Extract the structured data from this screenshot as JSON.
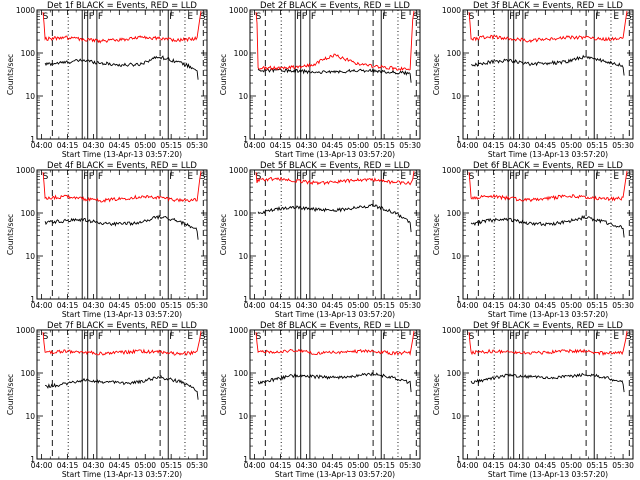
{
  "chart_data": [
    {
      "type": "line",
      "title": "Det 1f BLACK = Events, RED = LLD",
      "xlabel": "Start Time (13-Apr-13 03:57:20)",
      "ylabel": "Counts/sec",
      "series": [
        {
          "name": "Events",
          "color": "#000000",
          "values": [
            55,
            60,
            68,
            58,
            52,
            55,
            82,
            62,
            40
          ]
        },
        {
          "name": "LLD",
          "color": "#ff0000",
          "values": [
            210,
            230,
            205,
            190,
            205,
            230,
            220,
            200,
            220
          ]
        }
      ]
    },
    {
      "type": "line",
      "title": "Det 2f BLACK = Events, RED = LLD",
      "xlabel": "Start Time (13-Apr-13 03:57:20)",
      "ylabel": "Counts/sec",
      "series": [
        {
          "name": "Events",
          "color": "#000000",
          "values": [
            40,
            40,
            38,
            36,
            36,
            38,
            40,
            36,
            34
          ]
        },
        {
          "name": "LLD",
          "color": "#ff0000",
          "values": [
            45,
            45,
            48,
            55,
            90,
            60,
            50,
            45,
            40
          ]
        }
      ]
    },
    {
      "type": "line",
      "title": "Det 3f BLACK = Events, RED = LLD",
      "xlabel": "Start Time (13-Apr-13 03:57:20)",
      "ylabel": "Counts/sec",
      "series": [
        {
          "name": "Events",
          "color": "#000000",
          "values": [
            50,
            62,
            68,
            56,
            58,
            62,
            82,
            65,
            50
          ]
        },
        {
          "name": "LLD",
          "color": "#ff0000",
          "values": [
            210,
            240,
            220,
            195,
            210,
            230,
            230,
            210,
            220
          ]
        }
      ]
    },
    {
      "type": "line",
      "title": "Det 4f BLACK = Events, RED = LLD",
      "xlabel": "Start Time (13-Apr-13 03:57:20)",
      "ylabel": "Counts/sec",
      "series": [
        {
          "name": "Events",
          "color": "#000000",
          "values": [
            60,
            66,
            70,
            58,
            55,
            60,
            82,
            65,
            40
          ]
        },
        {
          "name": "LLD",
          "color": "#ff0000",
          "values": [
            220,
            240,
            215,
            195,
            215,
            240,
            230,
            200,
            200
          ]
        }
      ]
    },
    {
      "type": "line",
      "title": "Det 5f BLACK = Events, RED = LLD",
      "xlabel": "Start Time (13-Apr-13 03:57:20)",
      "ylabel": "Counts/sec",
      "series": [
        {
          "name": "Events",
          "color": "#000000",
          "values": [
            100,
            125,
            140,
            120,
            115,
            130,
            150,
            110,
            60
          ]
        },
        {
          "name": "LLD",
          "color": "#ff0000",
          "values": [
            600,
            620,
            560,
            500,
            520,
            580,
            600,
            520,
            500
          ]
        }
      ]
    },
    {
      "type": "line",
      "title": "Det 6f BLACK = Events, RED = LLD",
      "xlabel": "Start Time (13-Apr-13 03:57:20)",
      "ylabel": "Counts/sec",
      "series": [
        {
          "name": "Events",
          "color": "#000000",
          "values": [
            55,
            68,
            70,
            58,
            55,
            62,
            80,
            62,
            45
          ]
        },
        {
          "name": "LLD",
          "color": "#ff0000",
          "values": [
            220,
            250,
            220,
            200,
            215,
            250,
            240,
            210,
            220
          ]
        }
      ]
    },
    {
      "type": "line",
      "title": "Det 7f BLACK = Events, RED = LLD",
      "xlabel": "Start Time (13-Apr-13 03:57:20)",
      "ylabel": "Counts/sec",
      "series": [
        {
          "name": "Events",
          "color": "#000000",
          "values": [
            48,
            55,
            70,
            62,
            58,
            62,
            80,
            65,
            40
          ]
        },
        {
          "name": "LLD",
          "color": "#ff0000",
          "values": [
            300,
            320,
            310,
            280,
            300,
            320,
            310,
            280,
            300
          ]
        }
      ]
    },
    {
      "type": "line",
      "title": "Det 8f BLACK = Events, RED = LLD",
      "xlabel": "Start Time (13-Apr-13 03:57:20)",
      "ylabel": "Counts/sec",
      "series": [
        {
          "name": "Events",
          "color": "#000000",
          "values": [
            60,
            72,
            90,
            82,
            80,
            85,
            95,
            80,
            60
          ]
        },
        {
          "name": "LLD",
          "color": "#ff0000",
          "values": [
            300,
            320,
            330,
            290,
            300,
            320,
            320,
            290,
            300
          ]
        }
      ]
    },
    {
      "type": "line",
      "title": "Det 9f BLACK = Events, RED = LLD",
      "xlabel": "Start Time (13-Apr-13 03:57:20)",
      "ylabel": "Counts/sec",
      "series": [
        {
          "name": "Events",
          "color": "#000000",
          "values": [
            60,
            75,
            90,
            82,
            78,
            82,
            95,
            80,
            60
          ]
        },
        {
          "name": "LLD",
          "color": "#ff0000",
          "values": [
            300,
            320,
            320,
            290,
            300,
            330,
            320,
            290,
            300
          ]
        }
      ]
    }
  ],
  "shared": {
    "x_ticks": [
      "04:00",
      "04:15",
      "04:30",
      "04:45",
      "05:00",
      "05:15",
      "05:30"
    ],
    "x_range_minutes": [
      -2.667,
      95.75
    ],
    "y_range": [
      1,
      1000
    ],
    "y_scale": "log",
    "y_ticks": [
      "1",
      "10",
      "100",
      "1000"
    ],
    "markers": [
      {
        "label": "S",
        "minute": 0.0
      },
      {
        "label": "F",
        "minute": 23.5
      },
      {
        "label": "F",
        "minute": 26.7
      },
      {
        "label": "F",
        "minute": 32.0
      },
      {
        "label": "F",
        "minute": 73.3
      },
      {
        "label": "E",
        "minute": 83.8
      },
      {
        "label": "S",
        "minute": 91.0
      }
    ],
    "dashed_lines": [
      6.2,
      68.6,
      93.6
    ],
    "dotted_lines": [
      15.4,
      83.0
    ],
    "solid_lines": [
      23.5,
      26.7,
      32.0,
      73.3
    ]
  }
}
